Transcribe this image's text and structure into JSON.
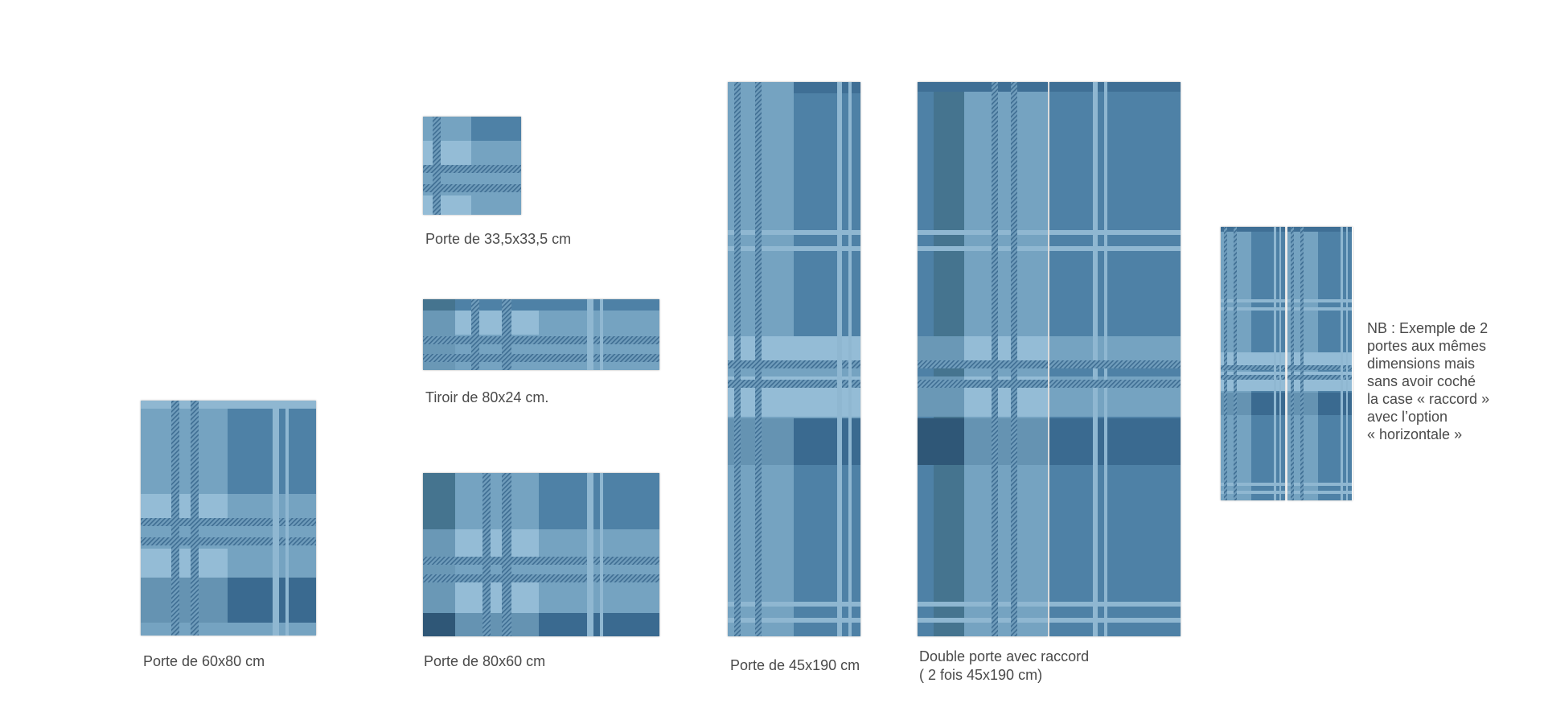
{
  "captions": {
    "porte_33": "Porte de 33,5x33,5 cm",
    "tiroir_80x24": "Tiroir de 80x24 cm.",
    "porte_60x80": "Porte de 60x80 cm",
    "porte_80x60": "Porte de 80x60 cm",
    "porte_45x190": "Porte de 45x190 cm",
    "double_porte_line1": "Double porte avec raccord",
    "double_porte_line2": "( 2 fois 45x190 cm)"
  },
  "note": {
    "lines": [
      "NB : Exemple de 2",
      "portes aux mêmes",
      "dimensions mais",
      "sans avoir coché",
      "la case « raccord »",
      "avec l’option",
      "« horizontale »"
    ]
  },
  "colors": {
    "plaid_light": "#94bcd6",
    "plaid_mid": "#75a3c1",
    "plaid_dark": "#4e81a6",
    "plaid_deep": "#3a6a90",
    "caption_text": "#4a4a4a"
  }
}
